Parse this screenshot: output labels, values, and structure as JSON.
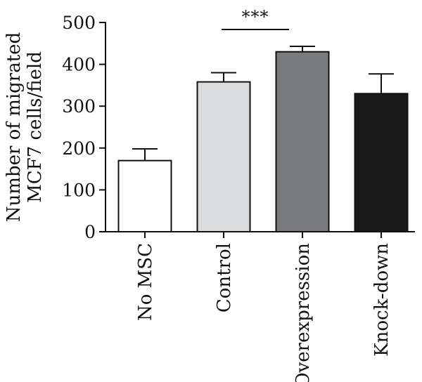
{
  "chart_data": {
    "type": "bar",
    "title": "",
    "ylabel": [
      "Number of migrated",
      "MCF7 cells/field"
    ],
    "xlabel": "",
    "categories": [
      "No MSC",
      "Control",
      "Overexpression",
      "Knock-down"
    ],
    "values": [
      170,
      358,
      430,
      330
    ],
    "errors": [
      28,
      22,
      13,
      47
    ],
    "ylim": [
      0,
      500
    ],
    "yticks": [
      0,
      100,
      200,
      300,
      400,
      500
    ],
    "bar_colors": [
      "#ffffff",
      "#d9dbdc",
      "#797b7f",
      "#1a1a1a"
    ],
    "grid": false,
    "significance": {
      "from": 1,
      "to": 2,
      "label": "***"
    }
  }
}
